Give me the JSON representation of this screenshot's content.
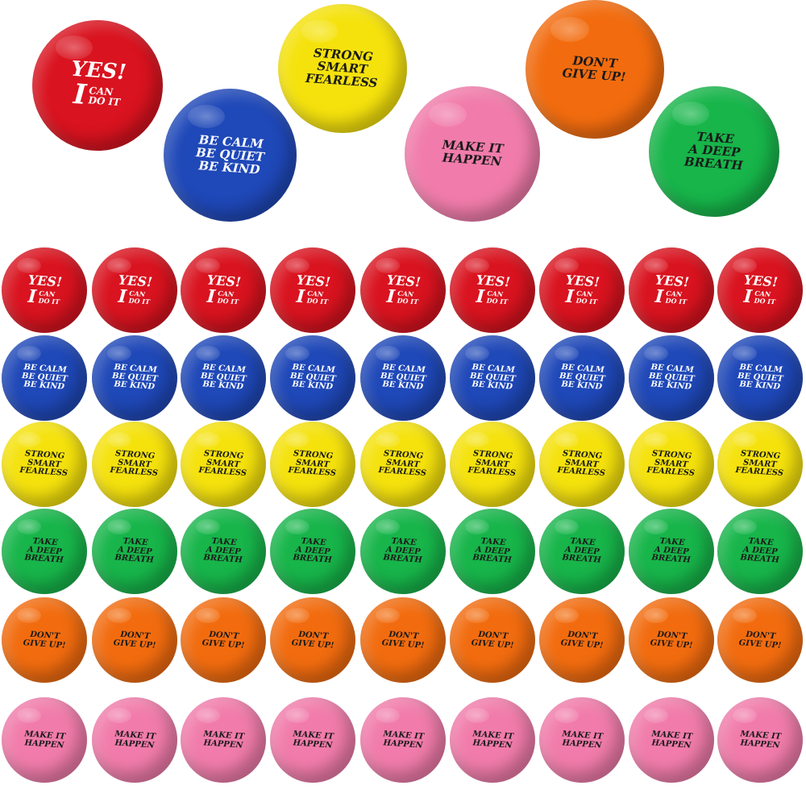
{
  "colors": {
    "red": "#d9131f",
    "blue": "#1f48b8",
    "yellow": "#f5e20d",
    "green": "#17b54a",
    "orange": "#f26c0f",
    "pink": "#f17cab"
  },
  "phrases": {
    "yes": {
      "l1": "YES!",
      "big": "I",
      "l2": "CAN",
      "l3": "DO IT"
    },
    "calm": [
      "BE CALM",
      "BE QUIET",
      "BE KIND"
    ],
    "strong": [
      "STRONG",
      "SMART",
      "FEARLESS"
    ],
    "breath": [
      "TAKE",
      "A DEEP",
      "BREATH"
    ],
    "giveup": [
      "DON'T",
      "GIVE UP!"
    ],
    "happen": [
      "MAKE IT",
      "HAPPEN"
    ]
  },
  "grid": {
    "rows": [
      "yes",
      "calm",
      "strong",
      "breath",
      "giveup",
      "happen"
    ],
    "row_colors": [
      "red",
      "blue",
      "yellow",
      "green",
      "orange",
      "pink"
    ],
    "balls_per_row": 9
  },
  "featured": [
    {
      "phrase": "yes",
      "color": "red"
    },
    {
      "phrase": "calm",
      "color": "blue"
    },
    {
      "phrase": "strong",
      "color": "yellow"
    },
    {
      "phrase": "happen",
      "color": "pink"
    },
    {
      "phrase": "giveup",
      "color": "orange"
    },
    {
      "phrase": "breath",
      "color": "green"
    }
  ]
}
